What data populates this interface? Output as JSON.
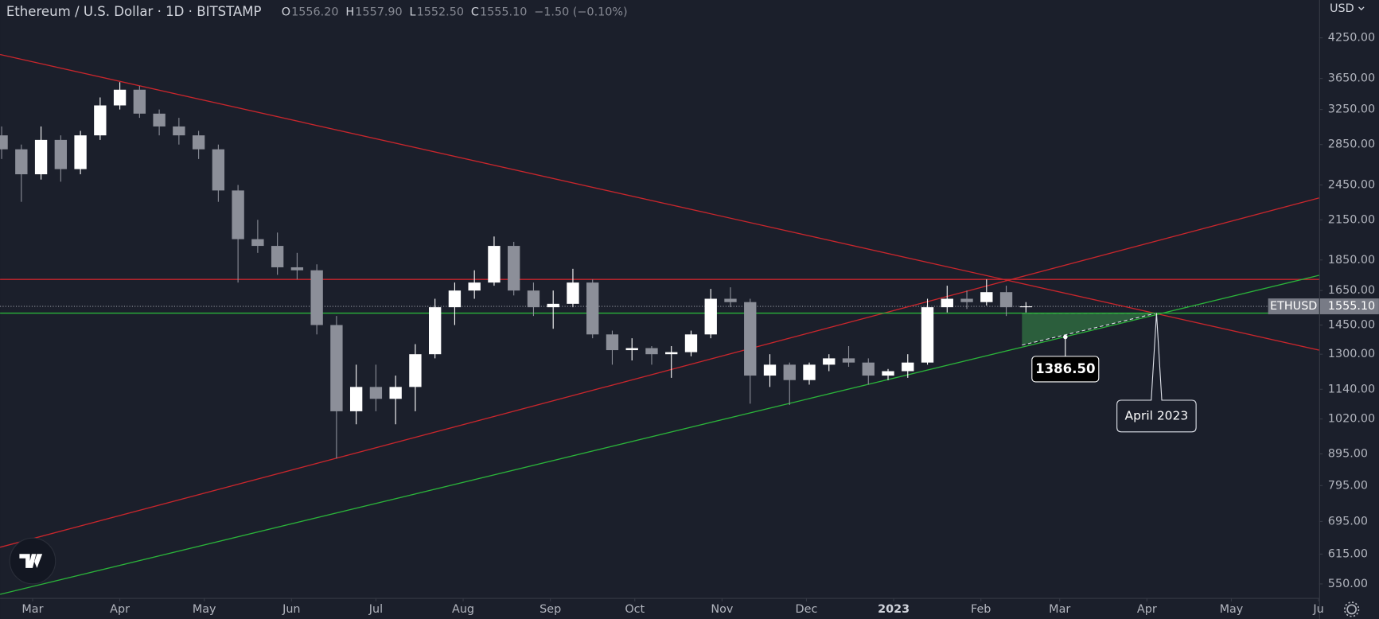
{
  "header": {
    "symbol": "Ethereum / U.S. Dollar · 1D · BITSTAMP",
    "ohlc": [
      {
        "letter": "O",
        "value": "1556.20"
      },
      {
        "letter": "H",
        "value": "1557.90"
      },
      {
        "letter": "L",
        "value": "1552.50"
      },
      {
        "letter": "C",
        "value": "1555.10"
      }
    ],
    "change": "−1.50 (−0.10%)",
    "currency": "USD"
  },
  "chart_data": {
    "type": "candlestick",
    "log_scale": true,
    "grid": false,
    "up_color": "#ffffff",
    "down_color": "#8c8f99",
    "x": [
      -11,
      -4,
      3,
      10,
      17,
      24,
      31,
      38,
      45,
      52,
      59,
      66,
      73,
      80,
      87,
      94,
      101,
      108,
      115,
      122,
      129,
      136,
      143,
      150,
      157,
      164,
      171,
      178,
      185,
      192,
      199,
      206,
      213,
      220,
      227,
      234,
      241,
      248,
      255,
      262,
      269,
      276,
      283,
      290,
      297,
      304,
      311,
      318,
      325,
      332,
      339,
      346,
      353
    ],
    "open": [
      2950,
      2800,
      2550,
      2900,
      2600,
      2950,
      3300,
      3500,
      3200,
      3050,
      2950,
      2800,
      2400,
      2000,
      1950,
      1800,
      1780,
      1450,
      1050,
      1150,
      1100,
      1150,
      1300,
      1550,
      1650,
      1700,
      1950,
      1650,
      1550,
      1570,
      1700,
      1400,
      1320,
      1330,
      1300,
      1310,
      1400,
      1600,
      1580,
      1200,
      1250,
      1180,
      1250,
      1280,
      1260,
      1200,
      1220,
      1260,
      1550,
      1600,
      1580,
      1640,
      1550
    ],
    "high": [
      3050,
      2850,
      3050,
      2950,
      3000,
      3400,
      3600,
      3550,
      3250,
      3150,
      3000,
      2850,
      2450,
      2150,
      2050,
      1900,
      1820,
      1500,
      1250,
      1250,
      1200,
      1350,
      1600,
      1700,
      1780,
      2020,
      1980,
      1700,
      1650,
      1790,
      1720,
      1420,
      1380,
      1340,
      1340,
      1420,
      1660,
      1670,
      1600,
      1300,
      1260,
      1260,
      1300,
      1340,
      1280,
      1230,
      1300,
      1600,
      1680,
      1650,
      1720,
      1680,
      1580
    ],
    "low": [
      2700,
      2300,
      2500,
      2480,
      2550,
      2900,
      3250,
      3150,
      2950,
      2850,
      2700,
      2300,
      1700,
      1900,
      1750,
      1720,
      1400,
      880,
      1000,
      1050,
      1000,
      1050,
      1280,
      1450,
      1600,
      1680,
      1620,
      1500,
      1430,
      1550,
      1380,
      1250,
      1270,
      1250,
      1190,
      1290,
      1380,
      1550,
      1080,
      1150,
      1075,
      1160,
      1220,
      1240,
      1160,
      1180,
      1190,
      1250,
      1520,
      1540,
      1560,
      1500,
      1520
    ],
    "close": [
      2800,
      2550,
      2900,
      2600,
      2950,
      3300,
      3500,
      3200,
      3050,
      2950,
      2800,
      2400,
      2000,
      1950,
      1800,
      1780,
      1450,
      1050,
      1150,
      1100,
      1150,
      1300,
      1550,
      1650,
      1700,
      1950,
      1650,
      1550,
      1570,
      1700,
      1400,
      1320,
      1330,
      1300,
      1310,
      1400,
      1600,
      1580,
      1200,
      1250,
      1180,
      1250,
      1280,
      1260,
      1200,
      1220,
      1260,
      1550,
      1600,
      1580,
      1640,
      1550,
      1555.1
    ],
    "xlim": [
      -11.56,
      457.19
    ],
    "xticks": [
      {
        "value": 0,
        "label": "Mar"
      },
      {
        "value": 31,
        "label": "Apr"
      },
      {
        "value": 61,
        "label": "May"
      },
      {
        "value": 92,
        "label": "Jun"
      },
      {
        "value": 122,
        "label": "Jul"
      },
      {
        "value": 153,
        "label": "Aug"
      },
      {
        "value": 184,
        "label": "Sep"
      },
      {
        "value": 214,
        "label": "Oct"
      },
      {
        "value": 245,
        "label": "Nov"
      },
      {
        "value": 275,
        "label": "Dec"
      },
      {
        "value": 306,
        "label": "2023",
        "bold": true
      },
      {
        "value": 337,
        "label": "Feb"
      },
      {
        "value": 365,
        "label": "Mar"
      },
      {
        "value": 396,
        "label": "Apr"
      },
      {
        "value": 426,
        "label": "May"
      },
      {
        "value": 457,
        "label": "Ju"
      }
    ],
    "ylim": [
      522,
      4897
    ],
    "yticks": [
      {
        "value": 4250,
        "label": "4250.00"
      },
      {
        "value": 3650,
        "label": "3650.00"
      },
      {
        "value": 3250,
        "label": "3250.00"
      },
      {
        "value": 2850,
        "label": "2850.00"
      },
      {
        "value": 2450,
        "label": "2450.00"
      },
      {
        "value": 2150,
        "label": "2150.00"
      },
      {
        "value": 1850,
        "label": "1850.00"
      },
      {
        "value": 1650,
        "label": "1650.00"
      },
      {
        "value": 1450,
        "label": "1450.00"
      },
      {
        "value": 1300,
        "label": "1300.00"
      },
      {
        "value": 1140,
        "label": "1140.00"
      },
      {
        "value": 1020,
        "label": "1020.00"
      },
      {
        "value": 895,
        "label": "895.00"
      },
      {
        "value": 795,
        "label": "795.00"
      },
      {
        "value": 695,
        "label": "695.00"
      },
      {
        "value": 615,
        "label": "615.00"
      },
      {
        "value": 550,
        "label": "550.00"
      }
    ],
    "trendlines": [
      {
        "color": "#c8262c",
        "points": [
          [
            -11.56,
            3993
          ],
          [
            457.19,
            1320
          ]
        ]
      },
      {
        "color": "#c8262c",
        "points": [
          [
            -11.56,
            1720
          ],
          [
            457.19,
            1720
          ]
        ]
      },
      {
        "color": "#c8262c",
        "points": [
          [
            -11.56,
            631
          ],
          [
            457.19,
            2334
          ]
        ]
      },
      {
        "color": "#2bb33a",
        "points": [
          [
            -11.56,
            1516
          ],
          [
            457.19,
            1516
          ]
        ]
      },
      {
        "color": "#2bb33a",
        "points": [
          [
            -11.56,
            529
          ],
          [
            457.19,
            1747
          ]
        ]
      }
    ],
    "shaded_zone": {
      "color": "#2e6a40",
      "points": [
        [
          351.6,
          1516
        ],
        [
          399.4,
          1516
        ],
        [
          351.6,
          1345
        ]
      ]
    },
    "price_tag": {
      "name": "ETHUSD",
      "value": 1555.1,
      "label": "1555.10"
    },
    "callouts": [
      {
        "x": 367,
        "value": 1386.5,
        "label": "1386.50"
      },
      {
        "x": 399.4,
        "value": 1516,
        "label": "April 2023"
      }
    ]
  }
}
